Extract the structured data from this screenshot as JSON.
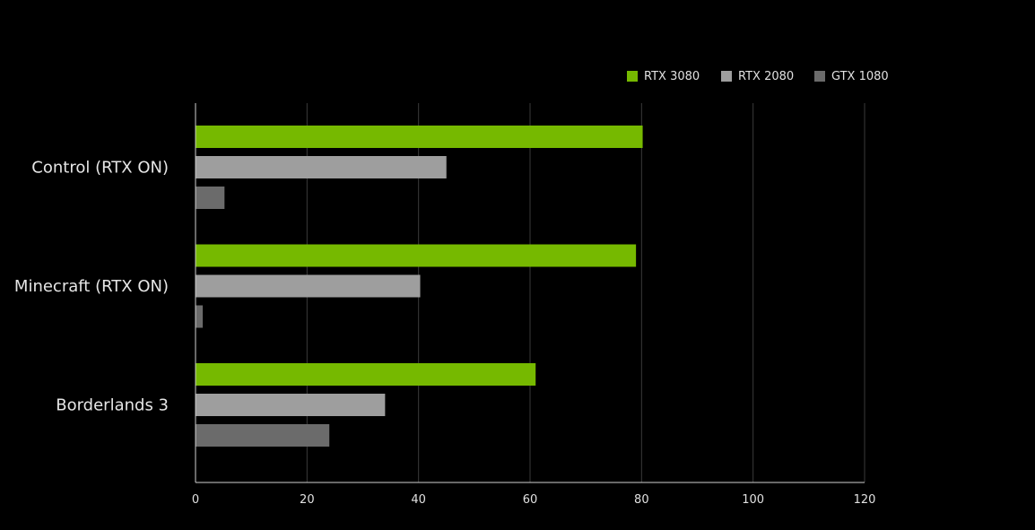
{
  "chart_data": {
    "type": "bar",
    "orientation": "horizontal",
    "categories": [
      "Control (RTX ON)",
      "Minecraft (RTX ON)",
      "Borderlands 3"
    ],
    "series": [
      {
        "name": "RTX 3080",
        "color": "#76b900",
        "values": [
          80.2,
          79,
          61
        ]
      },
      {
        "name": "RTX 2080",
        "color": "#9e9e9e",
        "values": [
          45,
          40.3,
          34
        ]
      },
      {
        "name": "GTX 1080",
        "color": "#6b6b6b",
        "values": [
          5.2,
          1.3,
          24
        ]
      }
    ],
    "xlim": [
      0,
      120
    ],
    "x_ticks": [
      0,
      20,
      40,
      60,
      80,
      100,
      120
    ],
    "grid": "vertical",
    "legend_position": "top-right",
    "title": "",
    "xlabel": "",
    "ylabel": ""
  }
}
